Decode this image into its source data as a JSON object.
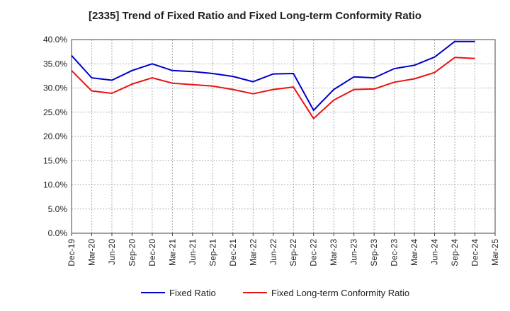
{
  "chart_data": {
    "type": "line",
    "title": "[2335]  Trend of Fixed Ratio and Fixed Long-term Conformity Ratio",
    "xlabel": "",
    "ylabel": "",
    "categories": [
      "Dec-19",
      "Mar-20",
      "Jun-20",
      "Sep-20",
      "Dec-20",
      "Mar-21",
      "Jun-21",
      "Sep-21",
      "Dec-21",
      "Mar-22",
      "Jun-22",
      "Sep-22",
      "Dec-22",
      "Mar-23",
      "Jun-23",
      "Sep-23",
      "Dec-23",
      "Mar-24",
      "Jun-24",
      "Sep-24",
      "Dec-24",
      "Mar-25"
    ],
    "ylim": [
      0,
      40
    ],
    "yticks": [
      "0.0%",
      "5.0%",
      "10.0%",
      "15.0%",
      "20.0%",
      "25.0%",
      "30.0%",
      "35.0%",
      "40.0%"
    ],
    "grid": true,
    "legend_position": "bottom",
    "series": [
      {
        "name": "Fixed Ratio",
        "color": "#0000cc",
        "values": [
          36.7,
          32.1,
          31.6,
          33.6,
          35.0,
          33.6,
          33.4,
          33.0,
          32.4,
          31.3,
          32.9,
          33.0,
          25.4,
          29.7,
          32.3,
          32.1,
          34.0,
          34.7,
          36.4,
          39.6,
          39.6,
          null
        ]
      },
      {
        "name": "Fixed Long-term Conformity Ratio",
        "color": "#ee1111",
        "values": [
          33.6,
          29.4,
          28.9,
          30.8,
          32.1,
          31.0,
          30.7,
          30.4,
          29.7,
          28.8,
          29.7,
          30.2,
          23.7,
          27.5,
          29.7,
          29.8,
          31.2,
          31.9,
          33.2,
          36.3,
          36.1,
          null
        ]
      }
    ]
  }
}
